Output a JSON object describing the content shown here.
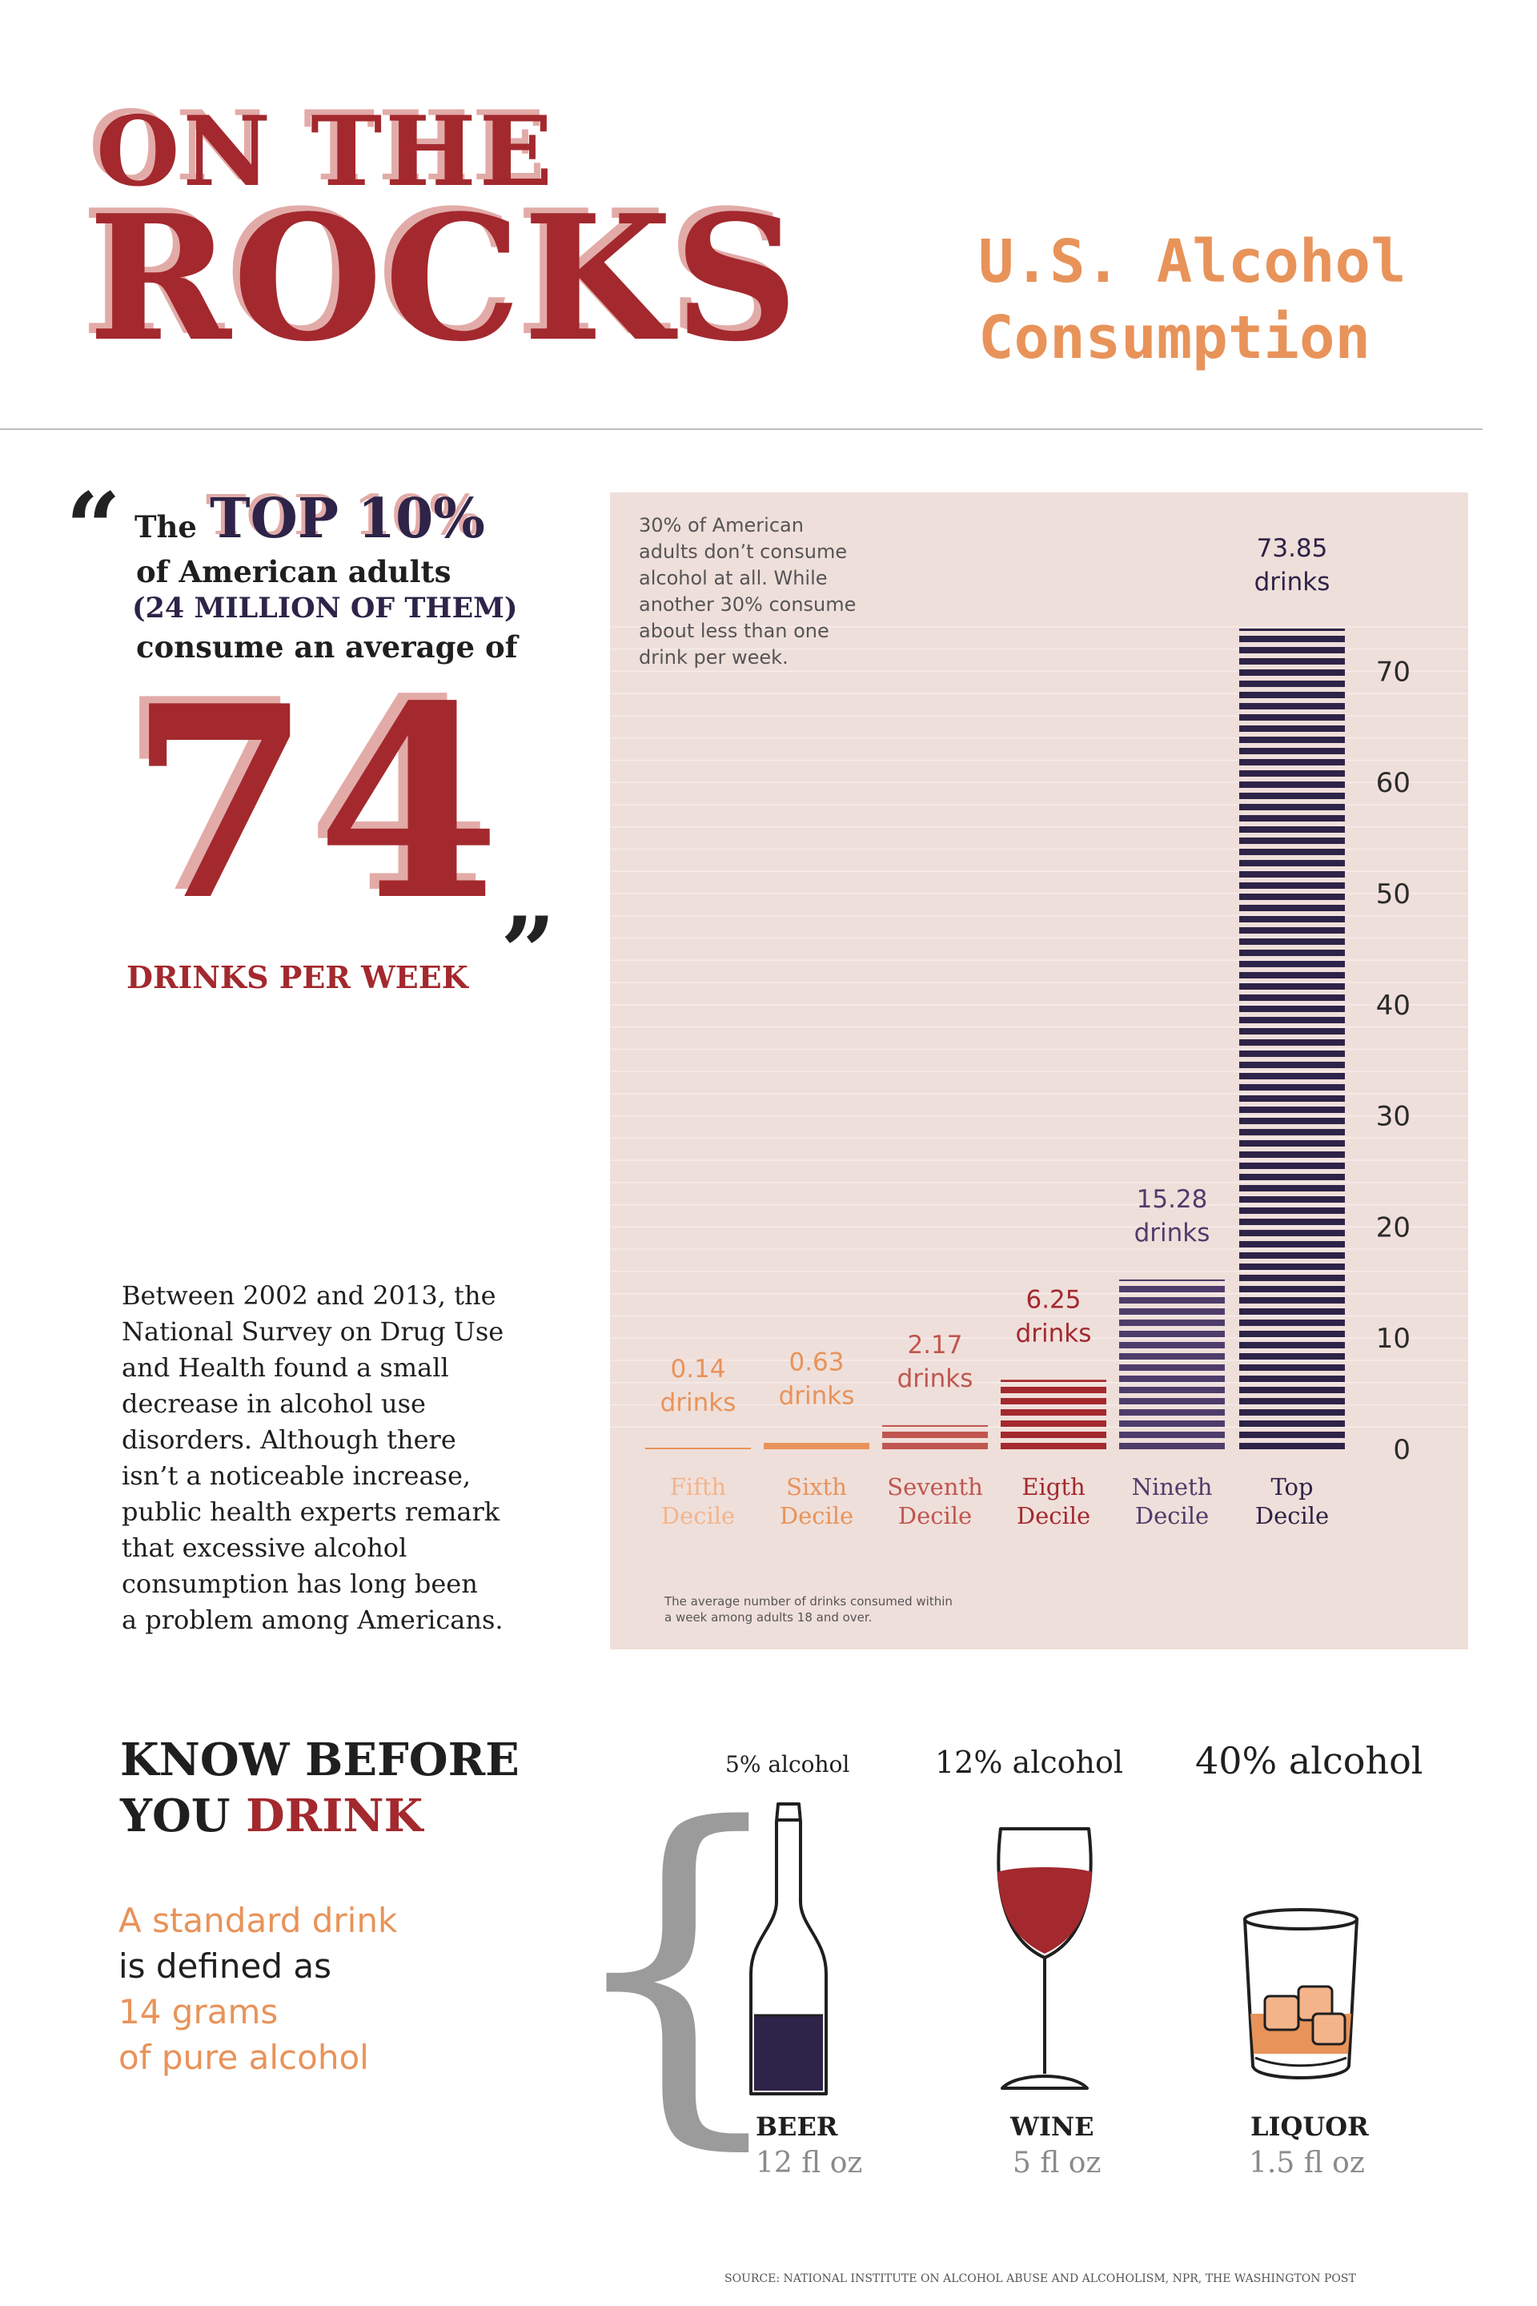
{
  "header": {
    "title_line1": "ON THE",
    "title_line2": "ROCKS",
    "subtitle_line1": "U.S. Alcohol",
    "subtitle_line2": "Consumption"
  },
  "quote": {
    "open_mark": "“",
    "close_mark": "”",
    "the": "The",
    "highlight": "TOP 10%",
    "line2": "of American adults",
    "line3": "(24 MILLION OF THEM)",
    "line4": "consume an average of",
    "big_number": "74",
    "unit": "DRINKS PER WEEK"
  },
  "paragraph": {
    "lines": [
      "Between 2002 and 2013, the",
      "National Survey on Drug Use",
      "and Health found a small",
      "decrease in alcohol use",
      "disorders. Although there",
      "isn’t a noticeable increase,",
      "public health experts remark",
      "that excessive alcohol",
      "consumption has long been",
      "a problem among Americans."
    ]
  },
  "chart_note": {
    "lines": [
      "30% of American",
      "adults don’t consume",
      "alcohol at all. While",
      "another 30% consume",
      "about less than one",
      "drink per week."
    ]
  },
  "chart_footnote": {
    "lines": [
      "The average number of drinks consumed within",
      "a week among adults 18 and over."
    ]
  },
  "chart_data": {
    "type": "bar",
    "categories": [
      [
        "Fifth",
        "Decile"
      ],
      [
        "Sixth",
        "Decile"
      ],
      [
        "Seventh",
        "Decile"
      ],
      [
        "Eigth",
        "Decile"
      ],
      [
        "Nineth",
        "Decile"
      ],
      [
        "Top",
        "Decile"
      ]
    ],
    "values": [
      0.14,
      0.63,
      2.17,
      6.25,
      15.28,
      73.85
    ],
    "value_labels": [
      [
        "0.14",
        "drinks"
      ],
      [
        "0.63",
        "drinks"
      ],
      [
        "2.17",
        "drinks"
      ],
      [
        "6.25",
        "drinks"
      ],
      [
        "15.28",
        "drinks"
      ],
      [
        "73.85",
        "drinks"
      ]
    ],
    "colors": [
      "#e8935a",
      "#e8935a",
      "#c0564f",
      "#a3292e",
      "#4e3d6b",
      "#2e2348"
    ],
    "label_colors": [
      "#e8935a",
      "#e8935a",
      "#c0564f",
      "#a3292e",
      "#4e3d6b",
      "#2e2348"
    ],
    "category_label_colors": [
      "#f2b58e",
      "#e8935a",
      "#c0564f",
      "#a3292e",
      "#4e3d6b",
      "#2e2348"
    ],
    "yticks": [
      0,
      10,
      20,
      30,
      40,
      50,
      60,
      70
    ],
    "ylim": [
      0,
      73.85
    ],
    "y_axis_position": "right",
    "grid": true
  },
  "know": {
    "line1": "KNOW BEFORE",
    "line2_prefix": "YOU ",
    "line2_accent": "DRINK",
    "std_line1": "A standard drink",
    "std_line2": "is defined as",
    "std_line3": "14 grams",
    "std_line4": "of pure alcohol",
    "brace": "{"
  },
  "drinks": {
    "beer": {
      "alcohol": "5% alcohol",
      "name": "BEER",
      "volume": "12 fl oz"
    },
    "wine": {
      "alcohol": "12% alcohol",
      "name": "WINE",
      "volume": "5 fl oz"
    },
    "liquor": {
      "alcohol": "40% alcohol",
      "name": "LIQUOR",
      "volume": "1.5 fl oz"
    }
  },
  "source": "SOURCE:  NATIONAL INSTITUTE ON ALCOHOL ABUSE AND ALCOHOLISM, NPR, THE WASHINGTON POST",
  "colors": {
    "accent_red": "#a3292e",
    "accent_orange": "#e8935a",
    "accent_purple": "#2e2348",
    "panel_bg": "#efdfda",
    "shadow_pink": "#e2aba8"
  }
}
